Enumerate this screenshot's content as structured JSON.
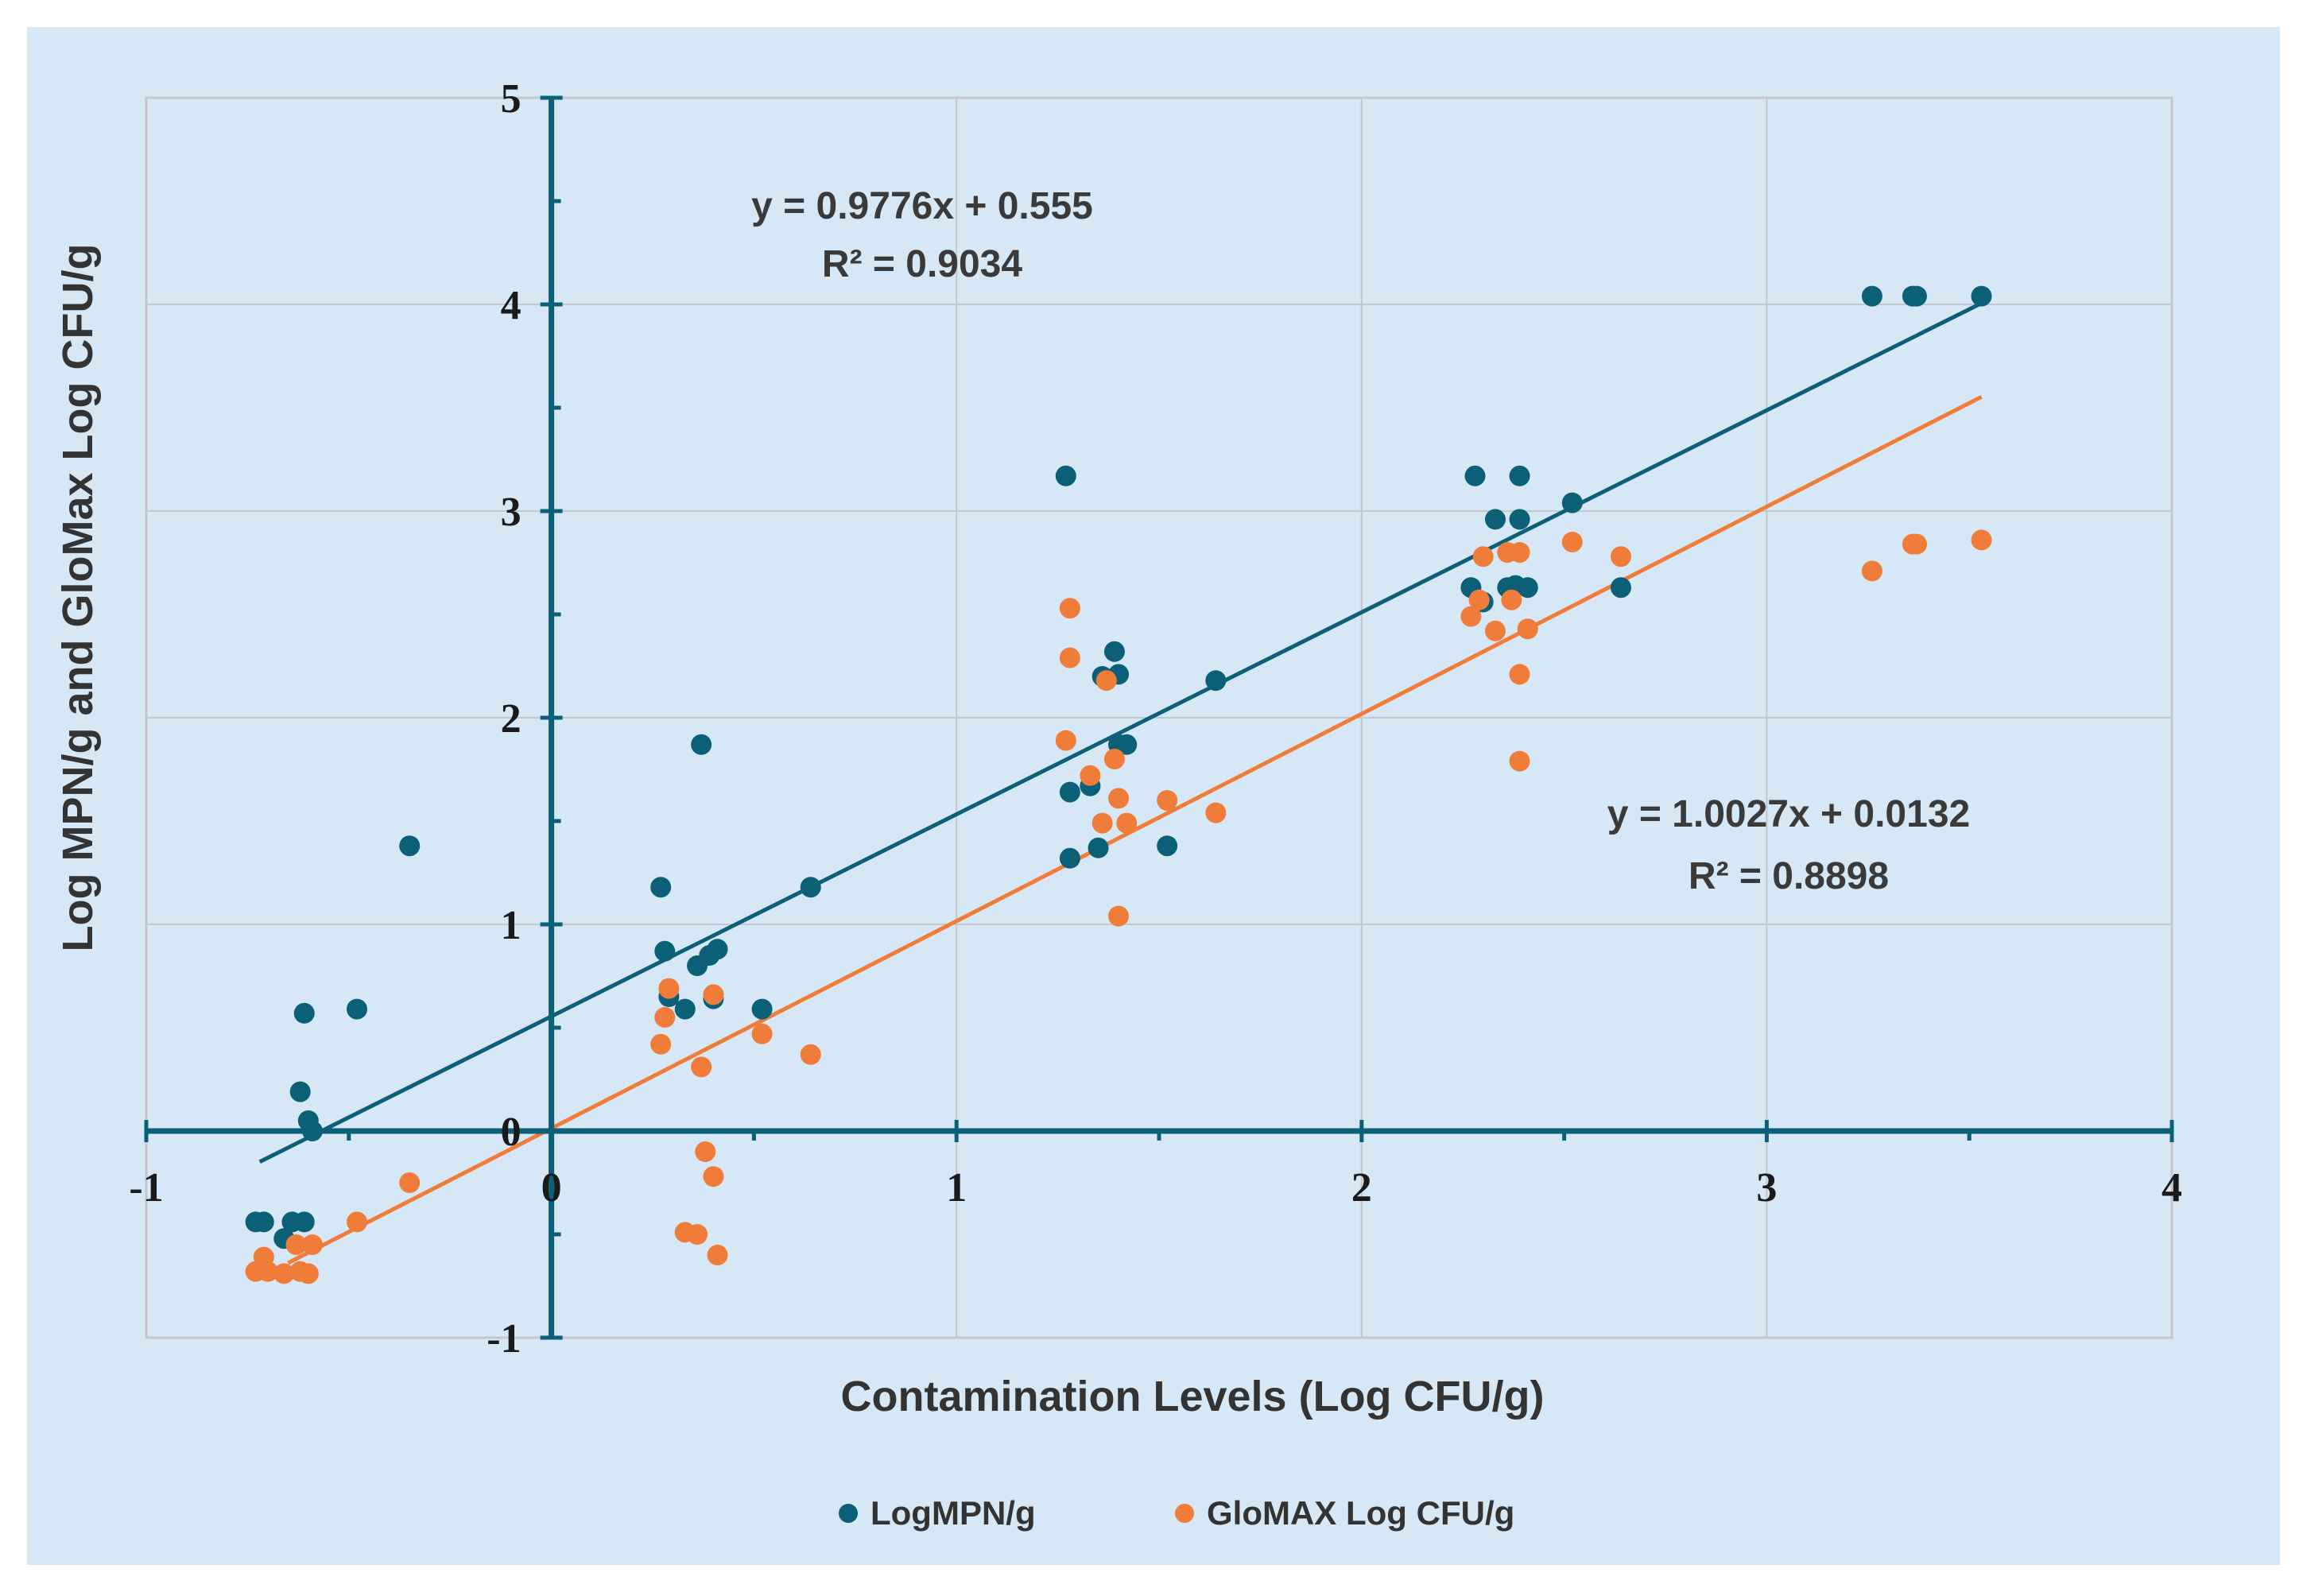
{
  "chart_data": {
    "type": "scatter",
    "xlabel": "Contamination Levels (Log CFU/g)",
    "ylabel": "Log MPN/g and GloMax Log CFU/g",
    "xlim": [
      -1,
      4
    ],
    "ylim": [
      -1,
      5
    ],
    "x_ticks": [
      "-1",
      "0",
      "1",
      "2",
      "3",
      "4"
    ],
    "y_ticks": [
      "-1",
      "0",
      "1",
      "2",
      "3",
      "4",
      "5"
    ],
    "grid": true,
    "legend_position": "bottom",
    "series": [
      {
        "name": "LogMPN/g",
        "color": "#0b6077",
        "trendline": {
          "slope": 0.9776,
          "intercept": 0.555,
          "x_start": -0.72,
          "x_end": 3.53
        },
        "equation": "y = 0.9776x + 0.555",
        "r2": "R² = 0.9034",
        "points": [
          [
            -0.73,
            -0.44
          ],
          [
            -0.71,
            -0.44
          ],
          [
            -0.66,
            -0.52
          ],
          [
            -0.64,
            -0.44
          ],
          [
            -0.61,
            -0.44
          ],
          [
            -0.62,
            0.19
          ],
          [
            -0.61,
            0.57
          ],
          [
            -0.6,
            0.05
          ],
          [
            -0.59,
            0.0
          ],
          [
            -0.48,
            0.59
          ],
          [
            -0.35,
            1.38
          ],
          [
            0.27,
            1.18
          ],
          [
            0.28,
            0.87
          ],
          [
            0.29,
            0.65
          ],
          [
            0.33,
            0.59
          ],
          [
            0.36,
            0.8
          ],
          [
            0.37,
            1.87
          ],
          [
            0.39,
            0.85
          ],
          [
            0.41,
            0.88
          ],
          [
            0.4,
            0.64
          ],
          [
            0.52,
            0.59
          ],
          [
            0.64,
            1.18
          ],
          [
            1.27,
            3.17
          ],
          [
            1.28,
            1.64
          ],
          [
            1.28,
            1.32
          ],
          [
            1.33,
            1.67
          ],
          [
            1.35,
            1.37
          ],
          [
            1.36,
            2.2
          ],
          [
            1.39,
            2.32
          ],
          [
            1.4,
            2.21
          ],
          [
            1.4,
            1.87
          ],
          [
            1.42,
            1.87
          ],
          [
            1.52,
            1.38
          ],
          [
            1.64,
            2.18
          ],
          [
            2.27,
            2.63
          ],
          [
            2.28,
            3.17
          ],
          [
            2.3,
            2.56
          ],
          [
            2.33,
            2.96
          ],
          [
            2.36,
            2.63
          ],
          [
            2.38,
            2.64
          ],
          [
            2.39,
            2.96
          ],
          [
            2.39,
            3.17
          ],
          [
            2.41,
            2.63
          ],
          [
            2.52,
            3.04
          ],
          [
            2.64,
            2.63
          ],
          [
            3.26,
            4.04
          ],
          [
            3.36,
            4.04
          ],
          [
            3.37,
            4.04
          ],
          [
            3.53,
            4.04
          ]
        ]
      },
      {
        "name": "GloMAX Log CFU/g",
        "color": "#f07c3a",
        "trendline": {
          "slope": 1.0027,
          "intercept": 0.0132,
          "x_start": -0.65,
          "x_end": 3.53
        },
        "equation": "y = 1.0027x + 0.0132",
        "r2": "R² = 0.8898",
        "points": [
          [
            -0.73,
            -0.68
          ],
          [
            -0.71,
            -0.61
          ],
          [
            -0.7,
            -0.68
          ],
          [
            -0.66,
            -0.69
          ],
          [
            -0.63,
            -0.55
          ],
          [
            -0.62,
            -0.68
          ],
          [
            -0.6,
            -0.69
          ],
          [
            -0.59,
            -0.55
          ],
          [
            -0.48,
            -0.44
          ],
          [
            -0.35,
            -0.25
          ],
          [
            0.27,
            0.42
          ],
          [
            0.28,
            0.55
          ],
          [
            0.29,
            0.69
          ],
          [
            0.33,
            -0.49
          ],
          [
            0.36,
            -0.5
          ],
          [
            0.37,
            0.31
          ],
          [
            0.38,
            -0.1
          ],
          [
            0.4,
            0.66
          ],
          [
            0.4,
            -0.22
          ],
          [
            0.41,
            -0.6
          ],
          [
            0.52,
            0.47
          ],
          [
            0.64,
            0.37
          ],
          [
            1.27,
            1.89
          ],
          [
            1.28,
            2.29
          ],
          [
            1.28,
            2.53
          ],
          [
            1.33,
            1.72
          ],
          [
            1.36,
            1.49
          ],
          [
            1.37,
            2.18
          ],
          [
            1.39,
            1.8
          ],
          [
            1.4,
            1.61
          ],
          [
            1.4,
            1.04
          ],
          [
            1.42,
            1.49
          ],
          [
            1.52,
            1.6
          ],
          [
            1.64,
            1.54
          ],
          [
            2.27,
            2.49
          ],
          [
            2.29,
            2.57
          ],
          [
            2.3,
            2.78
          ],
          [
            2.33,
            2.42
          ],
          [
            2.36,
            2.8
          ],
          [
            2.37,
            2.57
          ],
          [
            2.39,
            2.8
          ],
          [
            2.39,
            2.21
          ],
          [
            2.39,
            1.79
          ],
          [
            2.41,
            2.43
          ],
          [
            2.52,
            2.85
          ],
          [
            2.64,
            2.78
          ],
          [
            3.26,
            2.71
          ],
          [
            3.36,
            2.84
          ],
          [
            3.37,
            2.84
          ],
          [
            3.53,
            2.86
          ]
        ]
      }
    ]
  }
}
